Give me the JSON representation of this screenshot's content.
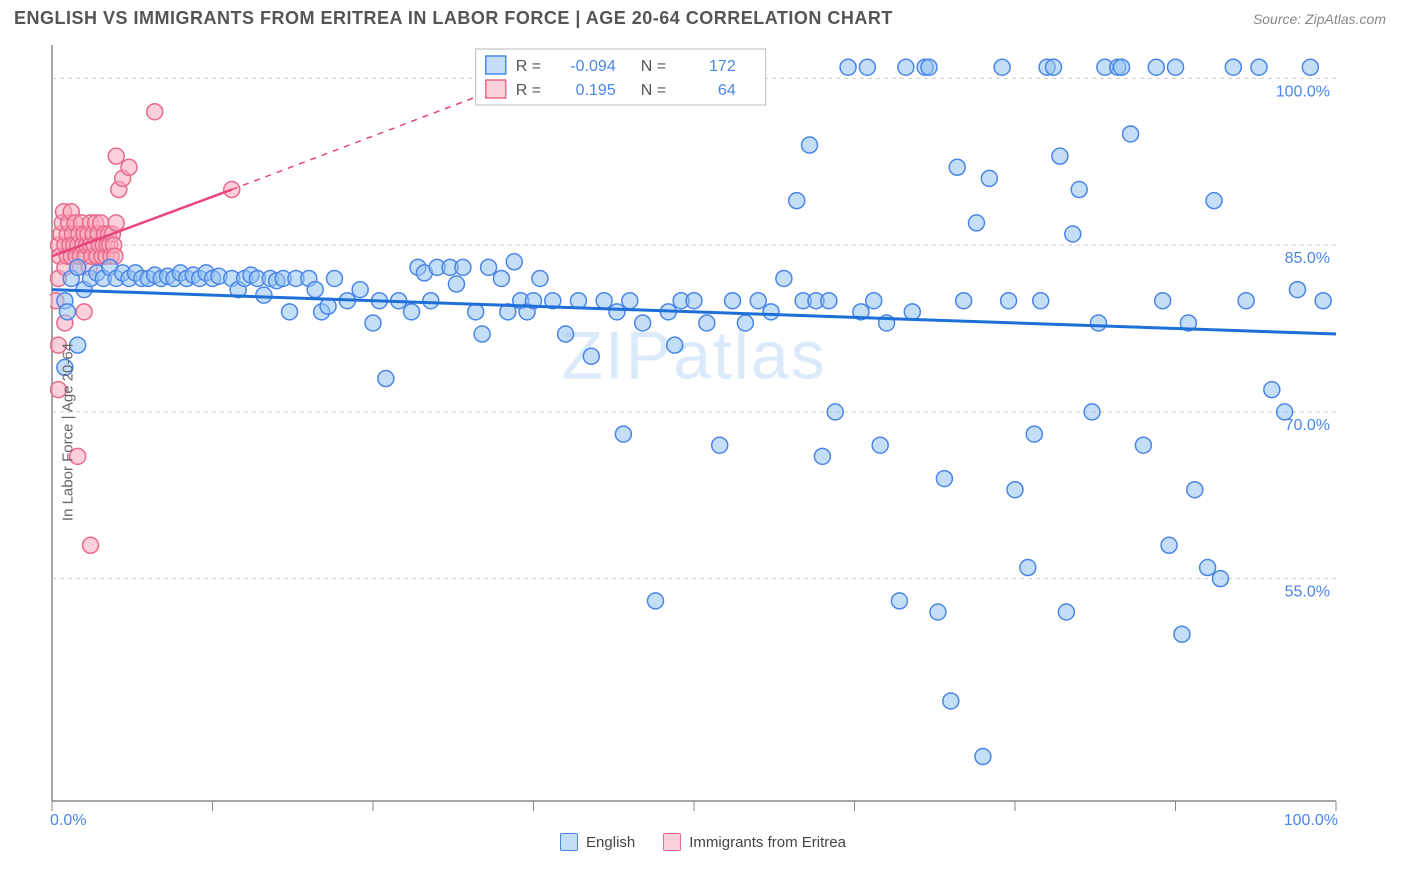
{
  "header": {
    "title": "ENGLISH VS IMMIGRANTS FROM ERITREA IN LABOR FORCE | AGE 20-64 CORRELATION CHART",
    "source": "Source: ZipAtlas.com"
  },
  "chart": {
    "type": "scatter",
    "watermark": "ZIPatlas",
    "ylabel": "In Labor Force | Age 20-64",
    "background_color": "#ffffff",
    "grid_color": "#cccccc",
    "axis_color": "#888888",
    "xlim": [
      0,
      100
    ],
    "ylim": [
      35,
      103
    ],
    "xticks": [
      0,
      12.5,
      25,
      37.5,
      50,
      62.5,
      75,
      87.5,
      100
    ],
    "xtick_labels": {
      "0": "0.0%",
      "100": "100.0%"
    },
    "yticks": [
      55,
      70,
      85,
      100
    ],
    "ytick_labels": {
      "55": "55.0%",
      "70": "70.0%",
      "85": "85.0%",
      "100": "100.0%"
    },
    "marker_radius": 8,
    "series": {
      "blue": {
        "label": "English",
        "color": "#96c2f0",
        "stroke": "#4a86e8",
        "trend_color": "#1f6fd8",
        "R": "-0.094",
        "N": "172",
        "trend": {
          "x1": 0,
          "y1": 81,
          "x2": 100,
          "y2": 77
        },
        "points": [
          [
            1,
            80
          ],
          [
            1.5,
            82
          ],
          [
            2,
            83
          ],
          [
            2.5,
            81
          ],
          [
            2,
            76
          ],
          [
            1,
            74
          ],
          [
            1.2,
            79
          ],
          [
            3,
            82
          ],
          [
            3.5,
            82.5
          ],
          [
            4,
            82
          ],
          [
            4.5,
            83
          ],
          [
            5,
            82
          ],
          [
            5.5,
            82.5
          ],
          [
            6,
            82
          ],
          [
            6.5,
            82.5
          ],
          [
            7,
            82
          ],
          [
            7.5,
            82
          ],
          [
            8,
            82.3
          ],
          [
            8.5,
            82
          ],
          [
            9,
            82.2
          ],
          [
            9.5,
            82
          ],
          [
            10,
            82.5
          ],
          [
            10.5,
            82
          ],
          [
            11,
            82.3
          ],
          [
            11.5,
            82
          ],
          [
            12,
            82.5
          ],
          [
            12.5,
            82
          ],
          [
            13,
            82.2
          ],
          [
            14,
            82
          ],
          [
            14.5,
            81
          ],
          [
            15,
            82
          ],
          [
            15.5,
            82.3
          ],
          [
            16,
            82
          ],
          [
            16.5,
            80.5
          ],
          [
            17,
            82
          ],
          [
            17.5,
            81.8
          ],
          [
            18,
            82
          ],
          [
            18.5,
            79
          ],
          [
            19,
            82
          ],
          [
            20,
            82
          ],
          [
            20.5,
            81
          ],
          [
            21,
            79
          ],
          [
            21.5,
            79.5
          ],
          [
            22,
            82
          ],
          [
            23,
            80
          ],
          [
            24,
            81
          ],
          [
            25,
            78
          ],
          [
            25.5,
            80
          ],
          [
            26,
            73
          ],
          [
            27,
            80
          ],
          [
            28,
            79
          ],
          [
            28.5,
            83
          ],
          [
            29,
            82.5
          ],
          [
            29.5,
            80
          ],
          [
            30,
            83
          ],
          [
            31,
            83
          ],
          [
            31.5,
            81.5
          ],
          [
            32,
            83
          ],
          [
            33,
            79
          ],
          [
            33.5,
            77
          ],
          [
            34,
            83
          ],
          [
            35,
            82
          ],
          [
            35.5,
            79
          ],
          [
            36,
            83.5
          ],
          [
            36.5,
            80
          ],
          [
            37,
            79
          ],
          [
            37.5,
            80
          ],
          [
            38,
            82
          ],
          [
            39,
            80
          ],
          [
            40,
            77
          ],
          [
            41,
            80
          ],
          [
            42,
            75
          ],
          [
            43,
            80
          ],
          [
            44,
            79
          ],
          [
            44.5,
            68
          ],
          [
            45,
            80
          ],
          [
            46,
            78
          ],
          [
            47,
            53
          ],
          [
            48,
            79
          ],
          [
            48.5,
            76
          ],
          [
            49,
            80
          ],
          [
            50,
            80
          ],
          [
            51,
            78
          ],
          [
            52,
            67
          ],
          [
            53,
            80
          ],
          [
            54,
            78
          ],
          [
            55,
            80
          ],
          [
            56,
            79
          ],
          [
            57,
            82
          ],
          [
            58,
            89
          ],
          [
            58.5,
            80
          ],
          [
            59,
            94
          ],
          [
            59.5,
            80
          ],
          [
            60,
            66
          ],
          [
            60.5,
            80
          ],
          [
            61,
            70
          ],
          [
            62,
            101
          ],
          [
            63,
            79
          ],
          [
            63.5,
            101
          ],
          [
            64,
            80
          ],
          [
            64.5,
            67
          ],
          [
            65,
            78
          ],
          [
            66,
            53
          ],
          [
            66.5,
            101
          ],
          [
            67,
            79
          ],
          [
            68,
            101
          ],
          [
            68.3,
            101
          ],
          [
            69,
            52
          ],
          [
            69.5,
            64
          ],
          [
            70,
            44
          ],
          [
            70.5,
            92
          ],
          [
            71,
            80
          ],
          [
            72,
            87
          ],
          [
            72.5,
            39
          ],
          [
            73,
            91
          ],
          [
            74,
            101
          ],
          [
            74.5,
            80
          ],
          [
            75,
            63
          ],
          [
            76,
            56
          ],
          [
            76.5,
            68
          ],
          [
            77,
            80
          ],
          [
            77.5,
            101
          ],
          [
            78,
            101
          ],
          [
            78.5,
            93
          ],
          [
            79,
            52
          ],
          [
            79.5,
            86
          ],
          [
            80,
            90
          ],
          [
            81,
            70
          ],
          [
            81.5,
            78
          ],
          [
            82,
            101
          ],
          [
            83,
            101
          ],
          [
            83.3,
            101
          ],
          [
            84,
            95
          ],
          [
            85,
            67
          ],
          [
            86,
            101
          ],
          [
            86.5,
            80
          ],
          [
            87,
            58
          ],
          [
            87.5,
            101
          ],
          [
            88,
            50
          ],
          [
            88.5,
            78
          ],
          [
            89,
            63
          ],
          [
            90,
            56
          ],
          [
            90.5,
            89
          ],
          [
            91,
            55
          ],
          [
            92,
            101
          ],
          [
            93,
            80
          ],
          [
            94,
            101
          ],
          [
            95,
            72
          ],
          [
            96,
            70
          ],
          [
            97,
            81
          ],
          [
            98,
            101
          ],
          [
            99,
            80
          ]
        ]
      },
      "pink": {
        "label": "Immigrants from Eritrea",
        "color": "#fab2c0",
        "stroke": "#e86a8a",
        "trend_color": "#e8467a",
        "R": "0.195",
        "N": "64",
        "trend_solid": {
          "x1": 0,
          "y1": 84,
          "x2": 14,
          "y2": 90
        },
        "trend_dash": {
          "x1": 14,
          "y1": 90,
          "x2": 38,
          "y2": 100.5
        },
        "points": [
          [
            0.3,
            80
          ],
          [
            0.5,
            82
          ],
          [
            0.5,
            85
          ],
          [
            0.6,
            84
          ],
          [
            0.7,
            86
          ],
          [
            0.8,
            87
          ],
          [
            0.9,
            88
          ],
          [
            1,
            85
          ],
          [
            1,
            83
          ],
          [
            1.2,
            86
          ],
          [
            1.2,
            84
          ],
          [
            1.3,
            87
          ],
          [
            1.4,
            85
          ],
          [
            1.5,
            88
          ],
          [
            1.5,
            84
          ],
          [
            1.6,
            86
          ],
          [
            1.7,
            85
          ],
          [
            1.8,
            87
          ],
          [
            1.9,
            84
          ],
          [
            2,
            85
          ],
          [
            2,
            83
          ],
          [
            2.1,
            86
          ],
          [
            2.2,
            84
          ],
          [
            2.3,
            87
          ],
          [
            2.4,
            85
          ],
          [
            2.5,
            86
          ],
          [
            2.6,
            84
          ],
          [
            2.7,
            85
          ],
          [
            2.8,
            86
          ],
          [
            2.9,
            83
          ],
          [
            3,
            85
          ],
          [
            3,
            87
          ],
          [
            3.1,
            84
          ],
          [
            3.2,
            86
          ],
          [
            3.3,
            85
          ],
          [
            3.4,
            87
          ],
          [
            3.5,
            84
          ],
          [
            3.6,
            86
          ],
          [
            3.7,
            85
          ],
          [
            3.8,
            87
          ],
          [
            3.9,
            84
          ],
          [
            4,
            85
          ],
          [
            4.1,
            86
          ],
          [
            4.2,
            84
          ],
          [
            4.3,
            85
          ],
          [
            4.4,
            86
          ],
          [
            4.5,
            85
          ],
          [
            4.6,
            84
          ],
          [
            4.7,
            86
          ],
          [
            4.8,
            85
          ],
          [
            4.9,
            84
          ],
          [
            5,
            87
          ],
          [
            5.2,
            90
          ],
          [
            5.5,
            91
          ],
          [
            6,
            92
          ],
          [
            5,
            93
          ],
          [
            0.5,
            76
          ],
          [
            1,
            78
          ],
          [
            0.5,
            72
          ],
          [
            2,
            66
          ],
          [
            8,
            97
          ],
          [
            3,
            58
          ],
          [
            14,
            90
          ],
          [
            2.5,
            79
          ]
        ]
      }
    }
  },
  "bottom_legend": {
    "blue": "English",
    "pink": "Immigrants from Eritrea"
  }
}
